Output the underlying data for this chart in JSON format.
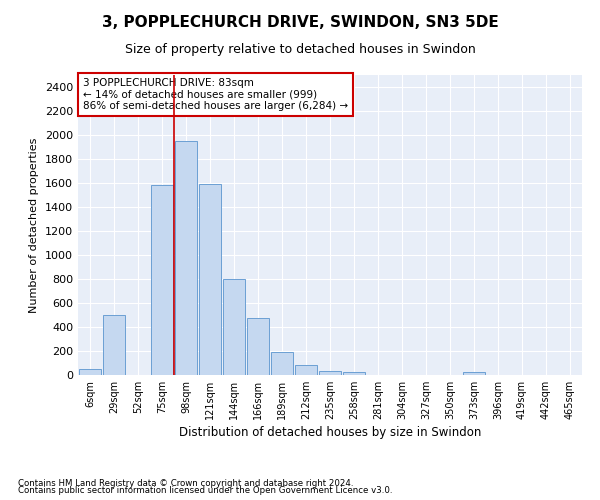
{
  "title": "3, POPPLECHURCH DRIVE, SWINDON, SN3 5DE",
  "subtitle": "Size of property relative to detached houses in Swindon",
  "xlabel": "Distribution of detached houses by size in Swindon",
  "ylabel": "Number of detached properties",
  "categories": [
    "6sqm",
    "29sqm",
    "52sqm",
    "75sqm",
    "98sqm",
    "121sqm",
    "144sqm",
    "166sqm",
    "189sqm",
    "212sqm",
    "235sqm",
    "258sqm",
    "281sqm",
    "304sqm",
    "327sqm",
    "350sqm",
    "373sqm",
    "396sqm",
    "419sqm",
    "442sqm",
    "465sqm"
  ],
  "values": [
    50,
    500,
    0,
    1580,
    1950,
    1590,
    800,
    475,
    195,
    85,
    35,
    25,
    0,
    0,
    0,
    0,
    22,
    0,
    0,
    0,
    0
  ],
  "bar_color": "#c5d8f0",
  "bar_edge_color": "#6b9fd4",
  "background_color": "#e8eef8",
  "grid_color": "#ffffff",
  "annotation_line1": "3 POPPLECHURCH DRIVE: 83sqm",
  "annotation_line2": "← 14% of detached houses are smaller (999)",
  "annotation_line3": "86% of semi-detached houses are larger (6,284) →",
  "annotation_box_color": "#ffffff",
  "annotation_box_edge_color": "#cc0000",
  "vline_x_index": 3.5,
  "vline_color": "#cc0000",
  "ylim": [
    0,
    2500
  ],
  "yticks": [
    0,
    200,
    400,
    600,
    800,
    1000,
    1200,
    1400,
    1600,
    1800,
    2000,
    2200,
    2400
  ],
  "footer_line1": "Contains HM Land Registry data © Crown copyright and database right 2024.",
  "footer_line2": "Contains public sector information licensed under the Open Government Licence v3.0.",
  "title_fontsize": 11,
  "subtitle_fontsize": 9,
  "ylabel_fontsize": 8,
  "xlabel_fontsize": 8.5,
  "ytick_fontsize": 8,
  "xtick_fontsize": 7,
  "annotation_fontsize": 7.5,
  "footer_fontsize": 6.2
}
